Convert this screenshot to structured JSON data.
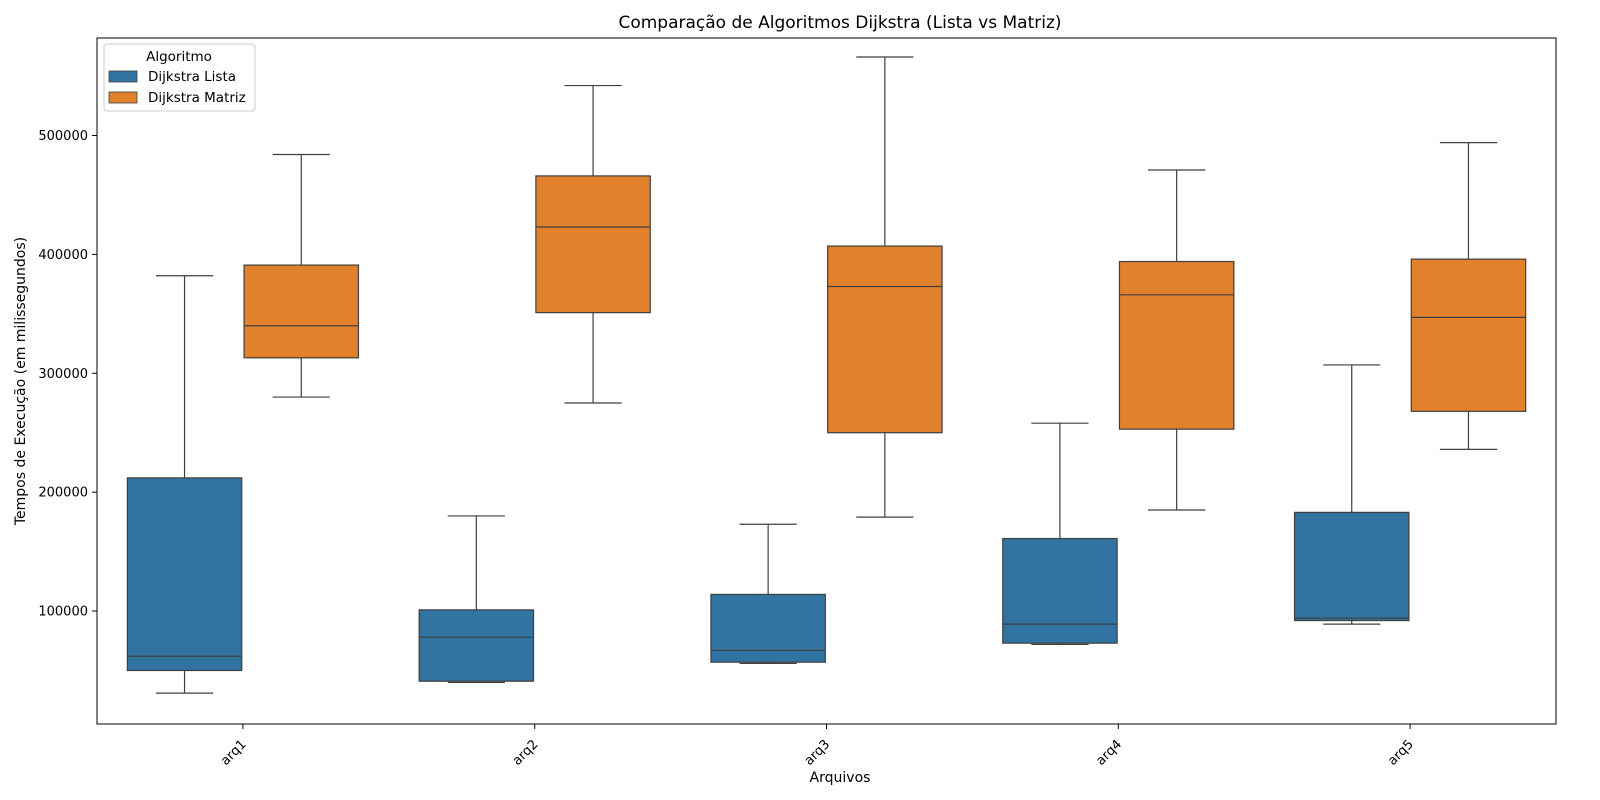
{
  "chart_data": {
    "type": "box",
    "title": "Comparação de Algoritmos Dijkstra (Lista vs Matriz)",
    "xlabel": "Arquivos",
    "ylabel": "Tempos de Execução (em milissegundos)",
    "categories": [
      "arq1",
      "arq2",
      "arq3",
      "arq4",
      "arq5"
    ],
    "ylim": [
      5000,
      582000
    ],
    "yticks": [
      100000,
      200000,
      300000,
      400000,
      500000
    ],
    "ytick_labels": [
      "100000",
      "200000",
      "300000",
      "400000",
      "500000"
    ],
    "grid": false,
    "legend": {
      "title": "Algoritmo",
      "placement": "top-left"
    },
    "series": [
      {
        "name": "Dijkstra Lista",
        "color": "#3274a1",
        "boxes": [
          {
            "whisker_low": 31000,
            "q1": 50000,
            "median": 62000,
            "q3": 212000,
            "whisker_high": 382000
          },
          {
            "whisker_low": 40000,
            "q1": 41000,
            "median": 78000,
            "q3": 101000,
            "whisker_high": 180000
          },
          {
            "whisker_low": 56000,
            "q1": 57000,
            "median": 67000,
            "q3": 114000,
            "whisker_high": 173000
          },
          {
            "whisker_low": 72000,
            "q1": 73000,
            "median": 89000,
            "q3": 161000,
            "whisker_high": 258000
          },
          {
            "whisker_low": 89000,
            "q1": 92000,
            "median": 94000,
            "q3": 183000,
            "whisker_high": 307000
          }
        ]
      },
      {
        "name": "Dijkstra Matriz",
        "color": "#e1812c",
        "boxes": [
          {
            "whisker_low": 280000,
            "q1": 313000,
            "median": 340000,
            "q3": 391000,
            "whisker_high": 484000
          },
          {
            "whisker_low": 275000,
            "q1": 351000,
            "median": 423000,
            "q3": 466000,
            "whisker_high": 542000
          },
          {
            "whisker_low": 179000,
            "q1": 250000,
            "median": 373000,
            "q3": 407000,
            "whisker_high": 566000
          },
          {
            "whisker_low": 185000,
            "q1": 253000,
            "median": 366000,
            "q3": 394000,
            "whisker_high": 471000
          },
          {
            "whisker_low": 236000,
            "q1": 268000,
            "median": 347000,
            "q3": 396000,
            "whisker_high": 494000
          }
        ]
      }
    ]
  }
}
